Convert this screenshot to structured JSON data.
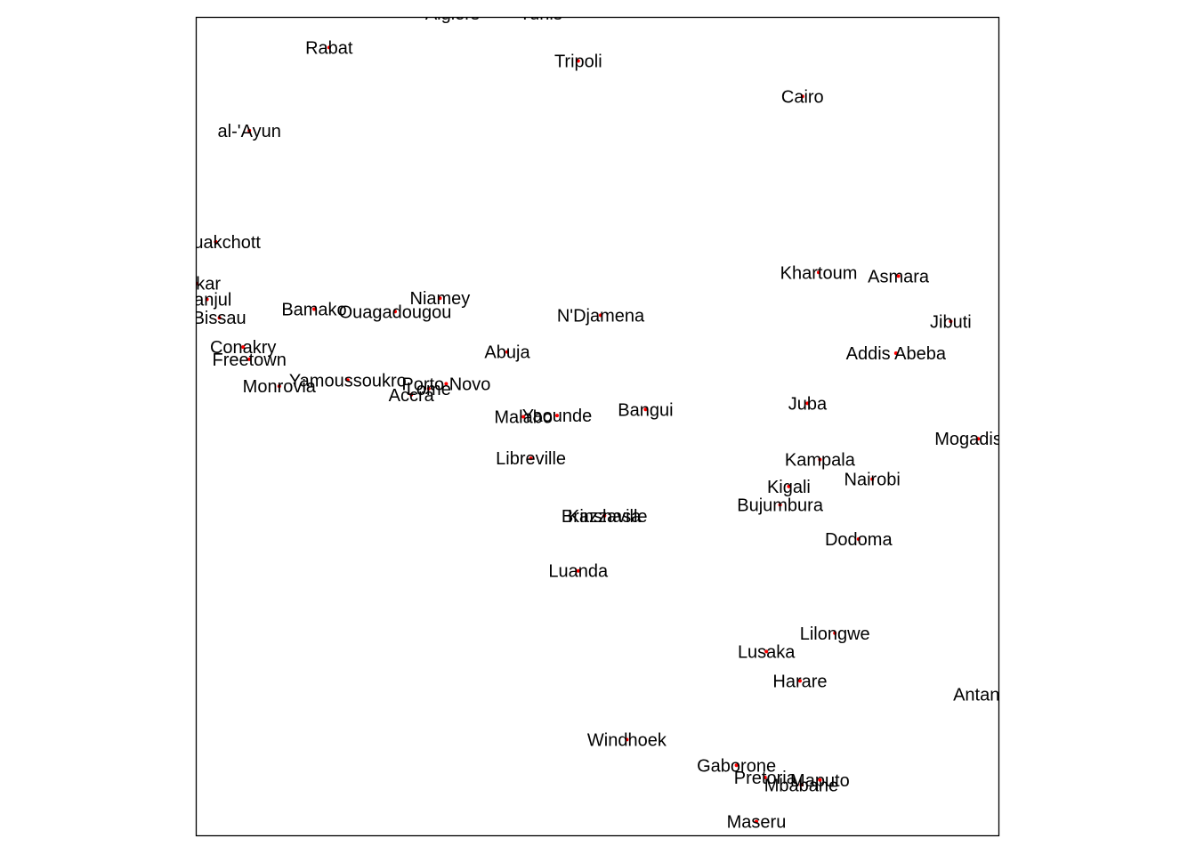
{
  "chart_data": {
    "type": "scatter",
    "title": "",
    "xlabel": "",
    "ylabel": "",
    "xlim": [
      -17.5,
      47
    ],
    "ylim": [
      -30.5,
      36.5
    ],
    "grid": false,
    "axes": false,
    "point_color": "#ff0000",
    "label_color": "#000000",
    "frame_color": "#000000",
    "points": [
      {
        "name": "Algiers",
        "x": 3.1,
        "y": 36.8
      },
      {
        "name": "Tunis",
        "x": 10.2,
        "y": 36.8
      },
      {
        "name": "Rabat",
        "x": -6.8,
        "y": 34.0
      },
      {
        "name": "Tripoli",
        "x": 13.2,
        "y": 32.9
      },
      {
        "name": "Cairo",
        "x": 31.2,
        "y": 30.0
      },
      {
        "name": "al-'Ayun",
        "x": -13.2,
        "y": 27.2
      },
      {
        "name": "Nouakchott",
        "x": -15.9,
        "y": 18.1
      },
      {
        "name": "Dakar",
        "x": -17.4,
        "y": 14.7
      },
      {
        "name": "Banjul",
        "x": -16.6,
        "y": 13.4
      },
      {
        "name": "Bissau",
        "x": -15.6,
        "y": 11.9
      },
      {
        "name": "Bamako",
        "x": -8.0,
        "y": 12.6
      },
      {
        "name": "Ouagadougou",
        "x": -1.5,
        "y": 12.4
      },
      {
        "name": "Niamey",
        "x": 2.1,
        "y": 13.5
      },
      {
        "name": "N'Djamena",
        "x": 15.0,
        "y": 12.1
      },
      {
        "name": "Khartoum",
        "x": 32.5,
        "y": 15.6
      },
      {
        "name": "Asmara",
        "x": 38.9,
        "y": 15.3
      },
      {
        "name": "Jibuti",
        "x": 43.1,
        "y": 11.6
      },
      {
        "name": "Addis Abeba",
        "x": 38.7,
        "y": 9.0
      },
      {
        "name": "Conakry",
        "x": -13.7,
        "y": 9.5
      },
      {
        "name": "Freetown",
        "x": -13.2,
        "y": 8.5
      },
      {
        "name": "Monrovia",
        "x": -10.8,
        "y": 6.3
      },
      {
        "name": "Yamoussoukro",
        "x": -5.3,
        "y": 6.8
      },
      {
        "name": "Accra",
        "x": -0.2,
        "y": 5.6
      },
      {
        "name": "Lome",
        "x": 1.2,
        "y": 6.1
      },
      {
        "name": "Porto Novo",
        "x": 2.6,
        "y": 6.5
      },
      {
        "name": "Abuja",
        "x": 7.5,
        "y": 9.1
      },
      {
        "name": "Malabo",
        "x": 8.8,
        "y": 3.8
      },
      {
        "name": "Yaounde",
        "x": 11.5,
        "y": 3.9
      },
      {
        "name": "Bangui",
        "x": 18.6,
        "y": 4.4
      },
      {
        "name": "Juba",
        "x": 31.6,
        "y": 4.9
      },
      {
        "name": "Mogadishu",
        "x": 45.3,
        "y": 2.0
      },
      {
        "name": "Libreville",
        "x": 9.4,
        "y": 0.4
      },
      {
        "name": "Kampala",
        "x": 32.6,
        "y": 0.3
      },
      {
        "name": "Kigali",
        "x": 30.1,
        "y": -1.9
      },
      {
        "name": "Nairobi",
        "x": 36.8,
        "y": -1.3
      },
      {
        "name": "Bujumbura",
        "x": 29.4,
        "y": -3.4
      },
      {
        "name": "Brazzaville",
        "x": 15.3,
        "y": -4.3
      },
      {
        "name": "Kinshasa",
        "x": 15.3,
        "y": -4.3
      },
      {
        "name": "Dodoma",
        "x": 35.7,
        "y": -6.2
      },
      {
        "name": "Luanda",
        "x": 13.2,
        "y": -8.8
      },
      {
        "name": "Lilongwe",
        "x": 33.8,
        "y": -13.9
      },
      {
        "name": "Lusaka",
        "x": 28.3,
        "y": -15.4
      },
      {
        "name": "Harare",
        "x": 31.0,
        "y": -17.8
      },
      {
        "name": "Antananarivo",
        "x": 47.5,
        "y": -18.9
      },
      {
        "name": "Windhoek",
        "x": 17.1,
        "y": -22.6
      },
      {
        "name": "Gaborone",
        "x": 25.9,
        "y": -24.7
      },
      {
        "name": "Pretoria",
        "x": 28.2,
        "y": -25.7
      },
      {
        "name": "Maputo",
        "x": 32.6,
        "y": -25.9
      },
      {
        "name": "Mbabane",
        "x": 31.1,
        "y": -26.3
      },
      {
        "name": "Maseru",
        "x": 27.5,
        "y": -29.3
      }
    ]
  }
}
